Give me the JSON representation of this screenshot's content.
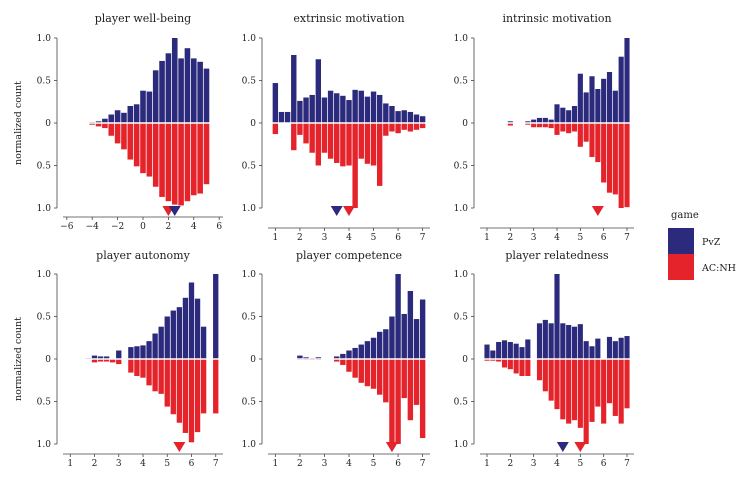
{
  "colors": {
    "PvZ": "#2b2a7c",
    "AC:NH": "#e4232b"
  },
  "y_label": "normalized count",
  "legend": {
    "title": "game",
    "entries": [
      {
        "name": "PvZ",
        "color": "#2b2a7c"
      },
      {
        "name": "AC:NH",
        "color": "#e4232b"
      }
    ]
  },
  "chart_data": [
    {
      "type": "bar",
      "title": "player well-being",
      "x": [
        -5,
        -4.5,
        -4,
        -3.5,
        -3,
        -2.5,
        -2,
        -1.5,
        -1,
        -0.5,
        0,
        0.5,
        1,
        1.5,
        2,
        2.5,
        3,
        3.5,
        4,
        4.5,
        5,
        5.5
      ],
      "series": [
        {
          "name": "PvZ",
          "values": [
            0,
            0,
            0.01,
            0.02,
            0.05,
            0.1,
            0.15,
            0.12,
            0.2,
            0.22,
            0.38,
            0.37,
            0.62,
            0.73,
            0.82,
            1.0,
            0.76,
            0.88,
            0.76,
            0.72,
            0.64,
            0.0
          ]
        },
        {
          "name": "AC:NH",
          "values": [
            0,
            0,
            0.02,
            0.04,
            0.06,
            0.15,
            0.24,
            0.31,
            0.43,
            0.51,
            0.59,
            0.63,
            0.75,
            0.87,
            0.92,
            0.96,
            0.97,
            0.92,
            0.85,
            0.83,
            0.72,
            0.0
          ]
        }
      ],
      "xticks": [
        -6,
        -4,
        -2,
        0,
        2,
        4,
        6
      ],
      "xlim": [
        -6.3,
        6.3
      ],
      "yticks": [
        "1.0",
        "0.5",
        "0",
        "0.5",
        "1.0"
      ],
      "markers": [
        {
          "series": "AC:NH",
          "x": 2.0
        },
        {
          "series": "PvZ",
          "x": 2.5
        }
      ]
    },
    {
      "type": "bar",
      "title": "extrinsic motivation",
      "x": [
        1,
        1.25,
        1.5,
        1.75,
        2,
        2.25,
        2.5,
        2.75,
        3,
        3.25,
        3.5,
        3.75,
        4,
        4.25,
        4.5,
        4.75,
        5,
        5.25,
        5.5,
        5.75,
        6,
        6.25,
        6.5,
        6.75,
        7
      ],
      "series": [
        {
          "name": "PvZ",
          "values": [
            0.47,
            0.13,
            0.13,
            0.8,
            0.26,
            0.3,
            0.33,
            0.75,
            0.3,
            0.38,
            0.35,
            0.32,
            0.27,
            0.39,
            0.38,
            0.31,
            0.37,
            0.33,
            0.23,
            0.2,
            0.14,
            0.15,
            0.13,
            0.1,
            0.08
          ]
        },
        {
          "name": "AC:NH",
          "values": [
            0.13,
            0.0,
            0.0,
            0.32,
            0.14,
            0.24,
            0.35,
            0.5,
            0.35,
            0.42,
            0.47,
            0.51,
            0.5,
            1.0,
            0.42,
            0.48,
            0.5,
            0.74,
            0.15,
            0.1,
            0.12,
            0.08,
            0.1,
            0.08,
            0.06
          ]
        }
      ],
      "xticks": [
        1,
        2,
        3,
        4,
        5,
        6,
        7
      ],
      "xlim": [
        0.7,
        7.3
      ],
      "yticks": [
        "1.0",
        "0.5",
        "0",
        "0.5",
        "1.0"
      ],
      "markers": [
        {
          "series": "PvZ",
          "x": 3.5
        },
        {
          "series": "AC:NH",
          "x": 4.0
        }
      ]
    },
    {
      "type": "bar",
      "title": "intrinsic motivation",
      "x": [
        1,
        1.25,
        1.5,
        1.75,
        2,
        2.25,
        2.5,
        2.75,
        3,
        3.25,
        3.5,
        3.75,
        4,
        4.25,
        4.5,
        4.75,
        5,
        5.25,
        5.5,
        5.75,
        6,
        6.25,
        6.5,
        6.75,
        7
      ],
      "series": [
        {
          "name": "PvZ",
          "values": [
            0,
            0,
            0,
            0,
            0.02,
            0,
            0,
            0.02,
            0.04,
            0.06,
            0.06,
            0.04,
            0.22,
            0.18,
            0.15,
            0.2,
            0.58,
            0.36,
            0.55,
            0.4,
            0.52,
            0.6,
            0.38,
            0.78,
            1.0
          ]
        },
        {
          "name": "AC:NH",
          "values": [
            0,
            0,
            0,
            0,
            0.03,
            0,
            0,
            0.02,
            0.05,
            0.05,
            0.05,
            0.06,
            0.14,
            0.1,
            0.12,
            0.1,
            0.28,
            0.22,
            0.4,
            0.46,
            0.7,
            0.82,
            0.84,
            1.0,
            0.99
          ]
        }
      ],
      "xticks": [
        1,
        2,
        3,
        4,
        5,
        6,
        7
      ],
      "xlim": [
        0.7,
        7.3
      ],
      "yticks": [
        "1.0",
        "0.5",
        "0",
        "0.5",
        "1.0"
      ],
      "markers": [
        {
          "series": "AC:NH",
          "x": 5.75
        }
      ]
    },
    {
      "type": "bar",
      "title": "player autonomy",
      "x": [
        1,
        1.25,
        1.5,
        1.75,
        2,
        2.25,
        2.5,
        2.75,
        3,
        3.25,
        3.5,
        3.75,
        4,
        4.25,
        4.5,
        4.75,
        5,
        5.25,
        5.5,
        5.75,
        6,
        6.25,
        6.5,
        6.75,
        7
      ],
      "series": [
        {
          "name": "PvZ",
          "values": [
            0,
            0,
            0,
            0.01,
            0.04,
            0.03,
            0.03,
            0.0,
            0.1,
            0.0,
            0.14,
            0.15,
            0.16,
            0.21,
            0.3,
            0.38,
            0.5,
            0.57,
            0.61,
            0.72,
            0.9,
            0.71,
            0.38,
            0.0,
            1.0
          ]
        },
        {
          "name": "AC:NH",
          "values": [
            0,
            0,
            0,
            0.0,
            0.04,
            0.03,
            0.03,
            0.04,
            0.06,
            0.0,
            0.16,
            0.2,
            0.22,
            0.31,
            0.38,
            0.41,
            0.56,
            0.65,
            0.75,
            0.87,
            0.98,
            0.86,
            0.64,
            0.0,
            0.64
          ]
        }
      ],
      "xticks": [
        1,
        2,
        3,
        4,
        5,
        6,
        7
      ],
      "xlim": [
        0.7,
        7.3
      ],
      "yticks": [
        "1.0",
        "0.5",
        "0",
        "0.5",
        "1.0"
      ],
      "markers": [
        {
          "series": "AC:NH",
          "x": 5.5
        }
      ]
    },
    {
      "type": "bar",
      "title": "player competence",
      "x": [
        1,
        1.25,
        1.5,
        1.75,
        2,
        2.25,
        2.5,
        2.75,
        3,
        3.25,
        3.5,
        3.75,
        4,
        4.25,
        4.5,
        4.75,
        5,
        5.25,
        5.5,
        5.75,
        6,
        6.25,
        6.5,
        6.75,
        7
      ],
      "series": [
        {
          "name": "PvZ",
          "values": [
            0,
            0,
            0,
            0,
            0.04,
            0.02,
            0.01,
            0.02,
            0.0,
            0.0,
            0.03,
            0.06,
            0.1,
            0.13,
            0.17,
            0.21,
            0.25,
            0.32,
            0.35,
            0.5,
            1.0,
            0.53,
            0.8,
            0.47,
            0.7
          ]
        },
        {
          "name": "AC:NH",
          "values": [
            0,
            0,
            0,
            0,
            0.01,
            0.01,
            0.01,
            0.01,
            0.0,
            0.0,
            0.03,
            0.07,
            0.15,
            0.22,
            0.28,
            0.32,
            0.35,
            0.42,
            0.51,
            0.98,
            1.0,
            0.46,
            0.72,
            0.54,
            0.93
          ]
        }
      ],
      "xticks": [
        1,
        2,
        3,
        4,
        5,
        6,
        7
      ],
      "xlim": [
        0.7,
        7.3
      ],
      "yticks": [
        "1.0",
        "0.5",
        "0",
        "0.5",
        "1.0"
      ],
      "markers": [
        {
          "series": "PvZ",
          "x": 5.75
        },
        {
          "series": "AC:NH",
          "x": 5.75
        }
      ]
    },
    {
      "type": "bar",
      "title": "player relatedness",
      "x": [
        1,
        1.25,
        1.5,
        1.75,
        2,
        2.25,
        2.5,
        2.75,
        3,
        3.25,
        3.5,
        3.75,
        4,
        4.25,
        4.5,
        4.75,
        5,
        5.25,
        5.5,
        5.75,
        6,
        6.25,
        6.5,
        6.75,
        7
      ],
      "series": [
        {
          "name": "PvZ",
          "values": [
            0.17,
            0.1,
            0.2,
            0.22,
            0.2,
            0.18,
            0.14,
            0.23,
            0.0,
            0.42,
            0.46,
            0.42,
            1.0,
            0.42,
            0.4,
            0.38,
            0.41,
            0.21,
            0.15,
            0.24,
            0.0,
            0.26,
            0.21,
            0.25,
            0.27
          ]
        },
        {
          "name": "AC:NH",
          "values": [
            0.02,
            0.02,
            0.03,
            0.1,
            0.12,
            0.17,
            0.2,
            0.2,
            0.0,
            0.25,
            0.38,
            0.49,
            0.59,
            0.71,
            0.76,
            0.72,
            0.81,
            1.0,
            0.74,
            0.56,
            0.76,
            0.52,
            0.67,
            0.76,
            0.58
          ]
        }
      ],
      "xticks": [
        1,
        2,
        3,
        4,
        5,
        6,
        7
      ],
      "xlim": [
        0.7,
        7.3
      ],
      "yticks": [
        "1.0",
        "0.5",
        "0",
        "0.5",
        "1.0"
      ],
      "markers": [
        {
          "series": "PvZ",
          "x": 4.25
        },
        {
          "series": "AC:NH",
          "x": 5.0
        }
      ]
    }
  ]
}
